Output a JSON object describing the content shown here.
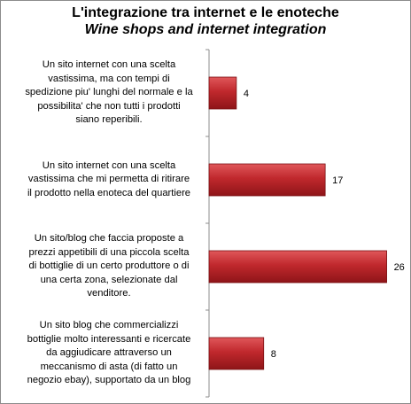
{
  "chart_data": {
    "type": "bar",
    "orientation": "horizontal",
    "title": "L'integrazione tra internet e le enoteche",
    "subtitle": "Wine shops and internet integration",
    "categories": [
      "Un sito internet con una scelta vastissima, ma con tempi di spedizione piu' lunghi del normale e la possibilita' che non tutti i prodotti siano reperibili.",
      "Un sito internet con una scelta vastissima che mi permetta di ritirare il prodotto nella enoteca del quartiere",
      "Un sito/blog che faccia proposte a prezzi appetibili di una piccola scelta di bottiglie di un certo produttore o di una certa zona, selezionate dal venditore.",
      "Un sito blog che commercializzi bottiglie molto interessanti e ricercate da aggiudicare attraverso un meccanismo di asta (di fatto un negozio ebay), supportato da un blog"
    ],
    "category_lines": [
      [
        "Un sito internet con una scelta",
        "vastissima, ma con tempi di",
        "spedizione piu' lunghi del normale e la",
        "possibilita' che non tutti i prodotti",
        "siano reperibili."
      ],
      [
        "Un sito internet con una scelta",
        "vastissima che mi permetta di ritirare",
        "il prodotto nella enoteca del quartiere"
      ],
      [
        "Un sito/blog che faccia proposte a",
        "prezzi appetibili di una piccola scelta",
        "di bottiglie di un certo produttore o di",
        "una certa zona, selezionate dal",
        "venditore."
      ],
      [
        "Un sito blog che commercializzi",
        "bottiglie molto interessanti e ricercate",
        "da aggiudicare attraverso un",
        "meccanismo di asta (di fatto un",
        "negozio ebay), supportato da un blog"
      ]
    ],
    "values": [
      4,
      17,
      26,
      8
    ],
    "xlim": [
      0,
      28
    ],
    "data_labels": true,
    "bar_color": "#c0282d",
    "grid": false,
    "legend": "none"
  }
}
